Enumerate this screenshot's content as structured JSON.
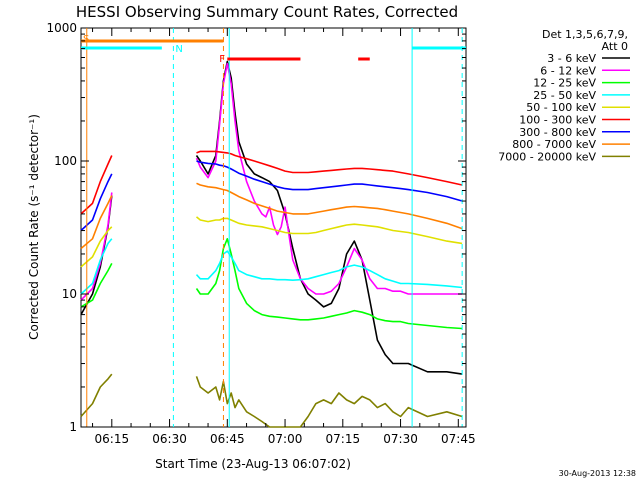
{
  "chart_data": {
    "type": "line",
    "title": "HESSI Observing Summary Count Rates, Corrected",
    "xlabel": "Start Time (23-Aug-13 06:07:02)",
    "ylabel": "Corrected Count Rate (s⁻¹ detector⁻¹)",
    "y_scale": "log",
    "ylim": [
      1,
      1000
    ],
    "xlim": [
      "06:07",
      "07:47"
    ],
    "xlim_minutes": [
      0,
      100
    ],
    "x_ticks": [
      {
        "label": "06:15",
        "minute": 8
      },
      {
        "label": "06:30",
        "minute": 23
      },
      {
        "label": "06:45",
        "minute": 38
      },
      {
        "label": "07:00",
        "minute": 53
      },
      {
        "label": "07:15",
        "minute": 68
      },
      {
        "label": "07:30",
        "minute": 83
      },
      {
        "label": "07:45",
        "minute": 98
      }
    ],
    "y_ticks": [
      {
        "label": "1",
        "value": 1
      },
      {
        "label": "10",
        "value": 10
      },
      {
        "label": "100",
        "value": 100
      },
      {
        "label": "1000",
        "value": 1000
      }
    ],
    "legend": {
      "header": [
        "Det 1,3,5,6,7,9,",
        "Att 0"
      ],
      "placement": "right"
    },
    "series": [
      {
        "name": "3 - 6 keV",
        "color": "#000000",
        "x": [
          0,
          3,
          5,
          7,
          8,
          30,
          31,
          33,
          35,
          36,
          37,
          38,
          39,
          40,
          41,
          43,
          45,
          47,
          49,
          51,
          53,
          55,
          57,
          59,
          61,
          63,
          65,
          67,
          69,
          71,
          73,
          75,
          77,
          79,
          81,
          83,
          85,
          90,
          95,
          99
        ],
        "y": [
          7,
          10,
          16,
          32,
          55,
          110,
          100,
          80,
          110,
          200,
          400,
          560,
          420,
          230,
          140,
          95,
          80,
          75,
          70,
          60,
          40,
          22,
          13,
          10,
          9,
          8,
          8.5,
          11,
          20,
          25,
          18,
          9,
          4.5,
          3.5,
          3,
          3,
          3,
          2.6,
          2.6,
          2.5
        ]
      },
      {
        "name": "6 - 12 keV",
        "color": "#ff00ff",
        "x": [
          0,
          3,
          5,
          7,
          8,
          30,
          31,
          33,
          35,
          36,
          37,
          38,
          39,
          40,
          41,
          43,
          45,
          47,
          48,
          49,
          50,
          51,
          52,
          53,
          54,
          55,
          57,
          59,
          61,
          63,
          65,
          67,
          69,
          71,
          73,
          75,
          77,
          79,
          81,
          83,
          85,
          90,
          95,
          99
        ],
        "y": [
          9,
          11,
          17,
          33,
          58,
          105,
          90,
          75,
          100,
          190,
          380,
          540,
          380,
          200,
          120,
          70,
          50,
          40,
          38,
          45,
          33,
          28,
          32,
          45,
          28,
          18,
          13,
          11,
          10,
          10,
          10.5,
          12,
          16,
          22,
          18,
          13,
          11,
          11,
          10.5,
          10.5,
          10,
          10,
          10,
          10
        ]
      },
      {
        "name": "12 - 25 keV",
        "color": "#00ff00",
        "x": [
          0,
          3,
          5,
          7,
          8,
          30,
          31,
          33,
          35,
          36,
          37,
          38,
          39,
          40,
          41,
          43,
          45,
          47,
          49,
          51,
          53,
          55,
          57,
          59,
          61,
          63,
          65,
          67,
          69,
          71,
          73,
          75,
          77,
          79,
          81,
          83,
          85,
          90,
          95,
          99
        ],
        "y": [
          8,
          9,
          12,
          15,
          17,
          11,
          10,
          10,
          12,
          15,
          22,
          26,
          20,
          15,
          11,
          8.5,
          7.5,
          7,
          6.8,
          6.7,
          6.6,
          6.5,
          6.4,
          6.4,
          6.5,
          6.6,
          6.8,
          7,
          7.2,
          7.5,
          7.3,
          7,
          6.5,
          6.3,
          6.2,
          6.2,
          6,
          5.8,
          5.6,
          5.5
        ]
      },
      {
        "name": "25 - 50 keV",
        "color": "#00ffff",
        "x": [
          0,
          3,
          5,
          7,
          8,
          30,
          31,
          33,
          35,
          36,
          37,
          38,
          39,
          40,
          41,
          43,
          45,
          47,
          49,
          51,
          53,
          55,
          57,
          59,
          61,
          63,
          65,
          67,
          69,
          71,
          73,
          75,
          77,
          79,
          81,
          83,
          85,
          90,
          95,
          99
        ],
        "y": [
          10,
          12,
          18,
          24,
          26,
          14,
          13,
          13,
          15,
          17,
          20,
          21,
          19,
          17,
          15,
          14,
          13.5,
          13,
          13,
          12.8,
          12.8,
          12.7,
          12.8,
          13,
          13.5,
          14,
          14.5,
          15,
          16,
          16.5,
          16,
          15,
          14,
          13,
          12.5,
          12,
          12,
          11.8,
          11.5,
          11.2
        ]
      },
      {
        "name": "50 - 100 keV",
        "color": "#e0e000",
        "x": [
          0,
          3,
          5,
          7,
          8,
          30,
          31,
          33,
          35,
          36,
          37,
          38,
          39,
          40,
          41,
          43,
          45,
          47,
          49,
          51,
          53,
          55,
          57,
          59,
          61,
          63,
          65,
          67,
          69,
          71,
          73,
          75,
          77,
          79,
          81,
          83,
          85,
          90,
          95,
          99
        ],
        "y": [
          16,
          19,
          25,
          30,
          32,
          38,
          36,
          35,
          36,
          36,
          37,
          37,
          36,
          35,
          34,
          33,
          32.5,
          32,
          31,
          30,
          29,
          28.5,
          28.5,
          28.5,
          29,
          30,
          31,
          32,
          33,
          33.5,
          33,
          32.5,
          32,
          31,
          30,
          29.5,
          29,
          27,
          25,
          24
        ]
      },
      {
        "name": "100 - 300 keV",
        "color": "#ff0000",
        "x": [
          0,
          3,
          5,
          7,
          8,
          30,
          31,
          33,
          35,
          36,
          37,
          38,
          39,
          40,
          41,
          43,
          45,
          47,
          49,
          51,
          53,
          55,
          57,
          59,
          61,
          63,
          65,
          67,
          69,
          71,
          73,
          75,
          77,
          79,
          81,
          83,
          85,
          90,
          95,
          99
        ],
        "y": [
          40,
          48,
          70,
          95,
          110,
          115,
          118,
          118,
          118,
          117,
          116,
          115,
          113,
          110,
          108,
          104,
          100,
          96,
          92,
          88,
          84,
          82,
          82,
          82,
          83,
          84,
          85,
          86,
          87,
          88,
          88,
          87,
          86,
          85,
          84,
          82,
          80,
          75,
          70,
          66
        ]
      },
      {
        "name": "300 - 800 keV",
        "color": "#0000ff",
        "x": [
          0,
          3,
          5,
          7,
          8,
          30,
          31,
          33,
          35,
          36,
          37,
          38,
          39,
          40,
          41,
          43,
          45,
          47,
          49,
          51,
          53,
          55,
          57,
          59,
          61,
          63,
          65,
          67,
          69,
          71,
          73,
          75,
          77,
          79,
          81,
          83,
          85,
          90,
          95,
          99
        ],
        "y": [
          30,
          36,
          52,
          70,
          80,
          100,
          98,
          96,
          95,
          93,
          92,
          90,
          87,
          84,
          81,
          77,
          73,
          70,
          67,
          64,
          62,
          61,
          61,
          61,
          62,
          63,
          64,
          65,
          66,
          67,
          67,
          66,
          65,
          64,
          63,
          62,
          61,
          58,
          54,
          50
        ]
      },
      {
        "name": "800 - 7000 keV",
        "color": "#ff8000",
        "x": [
          0,
          3,
          5,
          7,
          8,
          30,
          31,
          33,
          35,
          36,
          37,
          38,
          39,
          40,
          41,
          43,
          45,
          47,
          49,
          51,
          53,
          55,
          57,
          59,
          61,
          63,
          65,
          67,
          69,
          71,
          73,
          75,
          77,
          79,
          81,
          83,
          85,
          90,
          95,
          99
        ],
        "y": [
          22,
          26,
          37,
          48,
          55,
          68,
          66,
          64,
          63,
          62,
          61,
          60,
          58,
          56,
          54,
          51,
          48,
          46,
          44,
          42,
          41,
          40,
          40,
          40,
          41,
          42,
          43,
          44,
          45,
          45.5,
          45,
          44.5,
          44,
          43,
          42,
          41,
          40,
          37,
          34,
          31
        ]
      },
      {
        "name": "7000 - 20000 keV",
        "color": "#808000",
        "x": [
          0,
          3,
          5,
          7,
          8,
          30,
          31,
          33,
          35,
          36,
          37,
          38,
          39,
          40,
          41,
          43,
          45,
          47,
          49,
          51,
          53,
          55,
          57,
          59,
          61,
          63,
          65,
          67,
          69,
          71,
          73,
          75,
          77,
          79,
          81,
          83,
          85,
          90,
          95,
          99
        ],
        "y": [
          1.2,
          1.5,
          2,
          2.3,
          2.5,
          2.4,
          2,
          1.8,
          2,
          1.6,
          2.2,
          1.5,
          1.8,
          1.4,
          1.6,
          1.3,
          1.2,
          1.1,
          1,
          1,
          1,
          1,
          1,
          1.2,
          1.5,
          1.6,
          1.5,
          1.8,
          1.6,
          1.5,
          1.7,
          1.6,
          1.4,
          1.5,
          1.3,
          1.2,
          1.4,
          1.2,
          1.3,
          1.2
        ]
      }
    ],
    "annotations": {
      "flags": [
        {
          "label": "S",
          "color": "#ff8000",
          "minute": 0
        },
        {
          "label": "N",
          "color": "#00ffff",
          "minute": 24
        },
        {
          "label": "F",
          "color": "#ff0000",
          "minute": 38
        }
      ],
      "bars": [
        {
          "name": "saa",
          "color": "#ff8000",
          "from": 0,
          "to": 37
        },
        {
          "name": "night",
          "color": "#00ffff",
          "from": 0,
          "to": 21
        },
        {
          "name": "night",
          "color": "#00ffff",
          "from": 86,
          "to": 100
        },
        {
          "name": "flare",
          "color": "#ff0000",
          "from": 38,
          "to": 57
        },
        {
          "name": "flare",
          "color": "#ff0000",
          "from": 72,
          "to": 75
        }
      ],
      "vlines": [
        {
          "minute": 1.5,
          "color": "#ff8000",
          "style": "solid"
        },
        {
          "minute": 24,
          "color": "#00ffff",
          "style": "dashed"
        },
        {
          "minute": 37,
          "color": "#ff8000",
          "style": "dashed"
        },
        {
          "minute": 38.5,
          "color": "#00ffff",
          "style": "solid"
        },
        {
          "minute": 86,
          "color": "#00ffff",
          "style": "solid"
        },
        {
          "minute": 99,
          "color": "#00ffff",
          "style": "dashed"
        }
      ]
    },
    "footer": "30-Aug-2013 12:38"
  }
}
